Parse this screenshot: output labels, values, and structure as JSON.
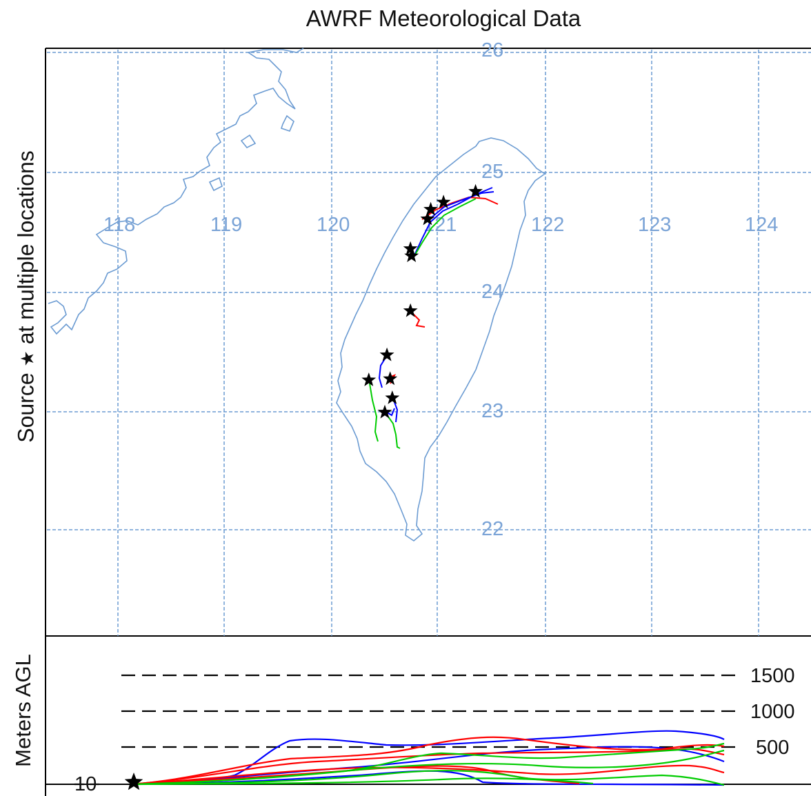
{
  "title": "AWRF Meteorological Data",
  "side_label": {
    "prefix": "Source",
    "star": "★",
    "suffix": "at multiple locations"
  },
  "height_axis_label": "Meters AGL",
  "height_levels": [
    "1500",
    "1000",
    "500"
  ],
  "source_height": "10",
  "map": {
    "longitude_labels": [
      "118",
      "119",
      "120",
      "121",
      "122",
      "123",
      "124"
    ],
    "latitude_labels": [
      "26",
      "25",
      "24",
      "23",
      "22"
    ],
    "source_locations": [
      {
        "lon": 121.35,
        "lat": 24.84
      },
      {
        "lon": 121.05,
        "lat": 24.75
      },
      {
        "lon": 120.93,
        "lat": 24.69
      },
      {
        "lon": 120.9,
        "lat": 24.61
      },
      {
        "lon": 120.74,
        "lat": 24.36
      },
      {
        "lon": 120.75,
        "lat": 24.3
      },
      {
        "lon": 120.74,
        "lat": 23.84
      },
      {
        "lon": 120.52,
        "lat": 23.47
      },
      {
        "lon": 120.35,
        "lat": 23.26
      },
      {
        "lon": 120.55,
        "lat": 23.27
      },
      {
        "lon": 120.57,
        "lat": 23.11
      },
      {
        "lon": 120.5,
        "lat": 22.99
      }
    ]
  },
  "colors": {
    "grid": "#6b9bd2",
    "coastline": "#6b9bd2",
    "series_blue": "#0000ff",
    "series_red": "#ff0000",
    "series_green": "#00cc00"
  }
}
